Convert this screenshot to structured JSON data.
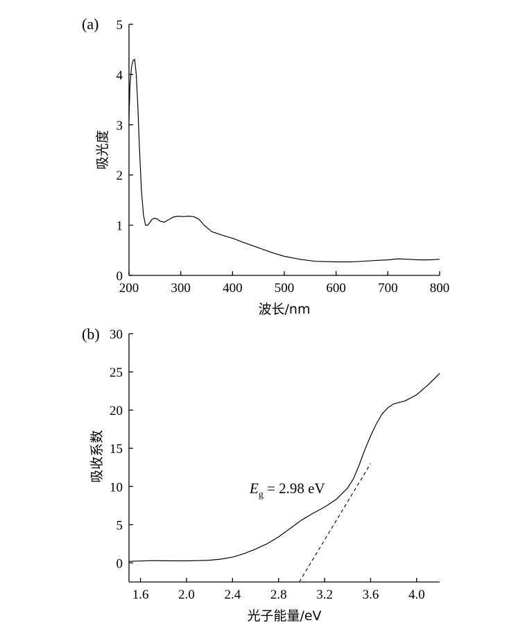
{
  "chart_data": [
    {
      "type": "line",
      "panel_label": "(a)",
      "xlabel": "波长/nm",
      "ylabel": "吸光度",
      "xlim": [
        200,
        800
      ],
      "ylim": [
        0,
        5
      ],
      "xticks": [
        200,
        300,
        400,
        500,
        600,
        700,
        800
      ],
      "yticks": [
        0,
        1,
        2,
        3,
        4,
        5
      ],
      "grid": false,
      "series": [
        {
          "x": [
            200,
            202,
            205,
            208,
            211,
            214,
            217,
            220,
            224,
            228,
            232,
            236,
            240,
            245,
            250,
            255,
            260,
            268,
            275,
            285,
            295,
            305,
            315,
            325,
            335,
            345,
            360,
            380,
            400,
            420,
            450,
            480,
            500,
            530,
            560,
            600,
            630,
            650,
            680,
            700,
            720,
            740,
            760,
            780,
            800
          ],
          "y": [
            3.1,
            3.8,
            4.15,
            4.28,
            4.3,
            4.0,
            3.4,
            2.6,
            1.7,
            1.2,
            1.0,
            1.0,
            1.05,
            1.12,
            1.14,
            1.12,
            1.08,
            1.06,
            1.1,
            1.16,
            1.18,
            1.17,
            1.18,
            1.17,
            1.12,
            1.0,
            0.87,
            0.8,
            0.74,
            0.66,
            0.55,
            0.44,
            0.38,
            0.32,
            0.28,
            0.27,
            0.27,
            0.28,
            0.3,
            0.31,
            0.33,
            0.32,
            0.31,
            0.31,
            0.32
          ]
        }
      ]
    },
    {
      "type": "line",
      "panel_label": "(b)",
      "xlabel": "光子能量/eV",
      "ylabel": "吸收系数",
      "xlim": [
        1.5,
        4.2
      ],
      "ylim": [
        -2.5,
        30
      ],
      "xticks": [
        1.6,
        2.0,
        2.4,
        2.8,
        3.2,
        3.6,
        4.0
      ],
      "yticks": [
        0,
        5,
        10,
        15,
        20,
        25,
        30
      ],
      "grid": false,
      "annotation": {
        "symbol": "E",
        "subscript": "g",
        "text": " = 2.98 eV"
      },
      "series": [
        {
          "x": [
            1.5,
            1.6,
            1.7,
            1.8,
            1.9,
            2.0,
            2.1,
            2.2,
            2.3,
            2.4,
            2.5,
            2.6,
            2.7,
            2.8,
            2.9,
            3.0,
            3.1,
            3.2,
            3.3,
            3.4,
            3.45,
            3.5,
            3.55,
            3.6,
            3.65,
            3.7,
            3.75,
            3.8,
            3.85,
            3.9,
            4.0,
            4.1,
            4.2
          ],
          "y": [
            0.2,
            0.25,
            0.3,
            0.28,
            0.27,
            0.27,
            0.3,
            0.35,
            0.5,
            0.75,
            1.2,
            1.8,
            2.5,
            3.4,
            4.5,
            5.6,
            6.5,
            7.3,
            8.3,
            9.8,
            11.0,
            12.8,
            14.8,
            16.6,
            18.2,
            19.5,
            20.3,
            20.8,
            21.0,
            21.2,
            22.0,
            23.3,
            24.8
          ]
        }
      ],
      "tangent_line": {
        "x": [
          2.98,
          3.6
        ],
        "y": [
          -2.5,
          13.0
        ]
      }
    }
  ]
}
